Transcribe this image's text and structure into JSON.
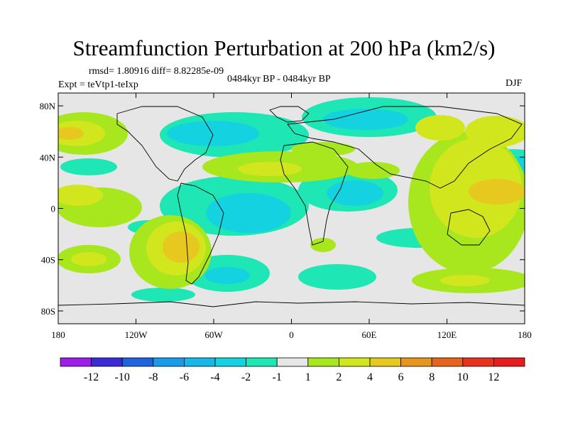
{
  "title": "Streamfunction Perturbation at 200 hPa (km2/s)",
  "subtitle_left_top": "rmsd= 1.80916 diff= 8.82285e-09",
  "subtitle_left_bottom": "Expt = teVtp1-teIxp",
  "subtitle_center": "0484kyr BP - 0484kyr BP",
  "season": "DJF",
  "map": {
    "projection": "cylindrical-equidistant",
    "lon_range": [
      -180,
      180
    ],
    "lat_range": [
      -90,
      90
    ],
    "lat_ticks": [
      {
        "value": 80,
        "label": "80N"
      },
      {
        "value": 40,
        "label": "40N"
      },
      {
        "value": 0,
        "label": "0"
      },
      {
        "value": -40,
        "label": "40S"
      },
      {
        "value": -80,
        "label": "80S"
      }
    ],
    "lon_ticks": [
      {
        "value": -180,
        "label": "180"
      },
      {
        "value": -120,
        "label": "120W"
      },
      {
        "value": -60,
        "label": "60W"
      },
      {
        "value": 0,
        "label": "0"
      },
      {
        "value": 60,
        "label": "60E"
      },
      {
        "value": 120,
        "label": "120E"
      },
      {
        "value": 180,
        "label": "180"
      }
    ]
  },
  "colorbar": {
    "labels": [
      "-12",
      "-10",
      "-8",
      "-6",
      "-4",
      "-2",
      "-1",
      "1",
      "2",
      "4",
      "6",
      "8",
      "10",
      "12"
    ],
    "colors": [
      "#9b1fe8",
      "#3a2bd6",
      "#1f63e0",
      "#1a9be8",
      "#18b8e6",
      "#14d2e0",
      "#1ee6b4",
      "#e6e6e6",
      "#a8e61e",
      "#d2e61e",
      "#e6c81e",
      "#e6961e",
      "#e6641e",
      "#e6321e",
      "#e61e1e"
    ]
  },
  "field_colors": {
    "neutral": "#e6e6e6",
    "neg1": "#1ee6b4",
    "neg2": "#14d2e0",
    "pos1": "#a8e61e",
    "pos2": "#d2e61e",
    "pos3": "#e6c81e",
    "pos4": "#e6961e"
  }
}
